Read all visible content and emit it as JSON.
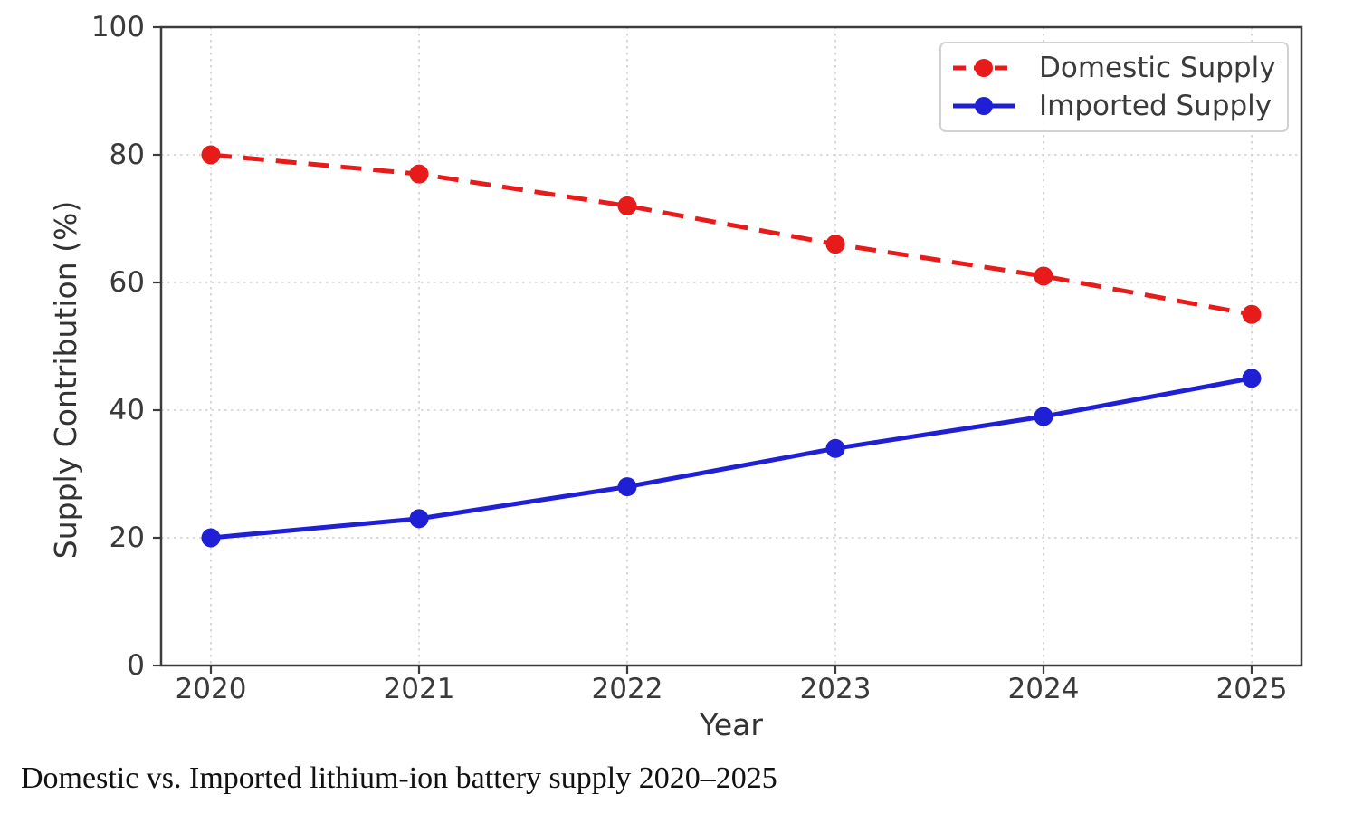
{
  "figure": {
    "caption": "Domestic vs. Imported lithium-ion battery supply 2020–2025"
  },
  "chart_data": {
    "type": "line",
    "x": [
      2020,
      2021,
      2022,
      2023,
      2024,
      2025
    ],
    "series": [
      {
        "name": "Domestic Supply",
        "values": [
          80,
          77,
          72,
          66,
          61,
          55
        ],
        "color": "#e81b1b",
        "line_style": "dashed",
        "marker": "circle"
      },
      {
        "name": "Imported Supply",
        "values": [
          20,
          23,
          28,
          34,
          39,
          45
        ],
        "color": "#1f1fd6",
        "line_style": "solid",
        "marker": "circle"
      }
    ],
    "xlabel": "Year",
    "ylabel": "Supply Contribution (%)",
    "ylim": [
      0,
      100
    ],
    "yticks": [
      0,
      20,
      40,
      60,
      80,
      100
    ],
    "grid": true,
    "legend_position": "upper right",
    "axis_color": "#3c3c3c",
    "tick_label_color": "#3a3a3a",
    "grid_color": "#cfcfcf"
  }
}
